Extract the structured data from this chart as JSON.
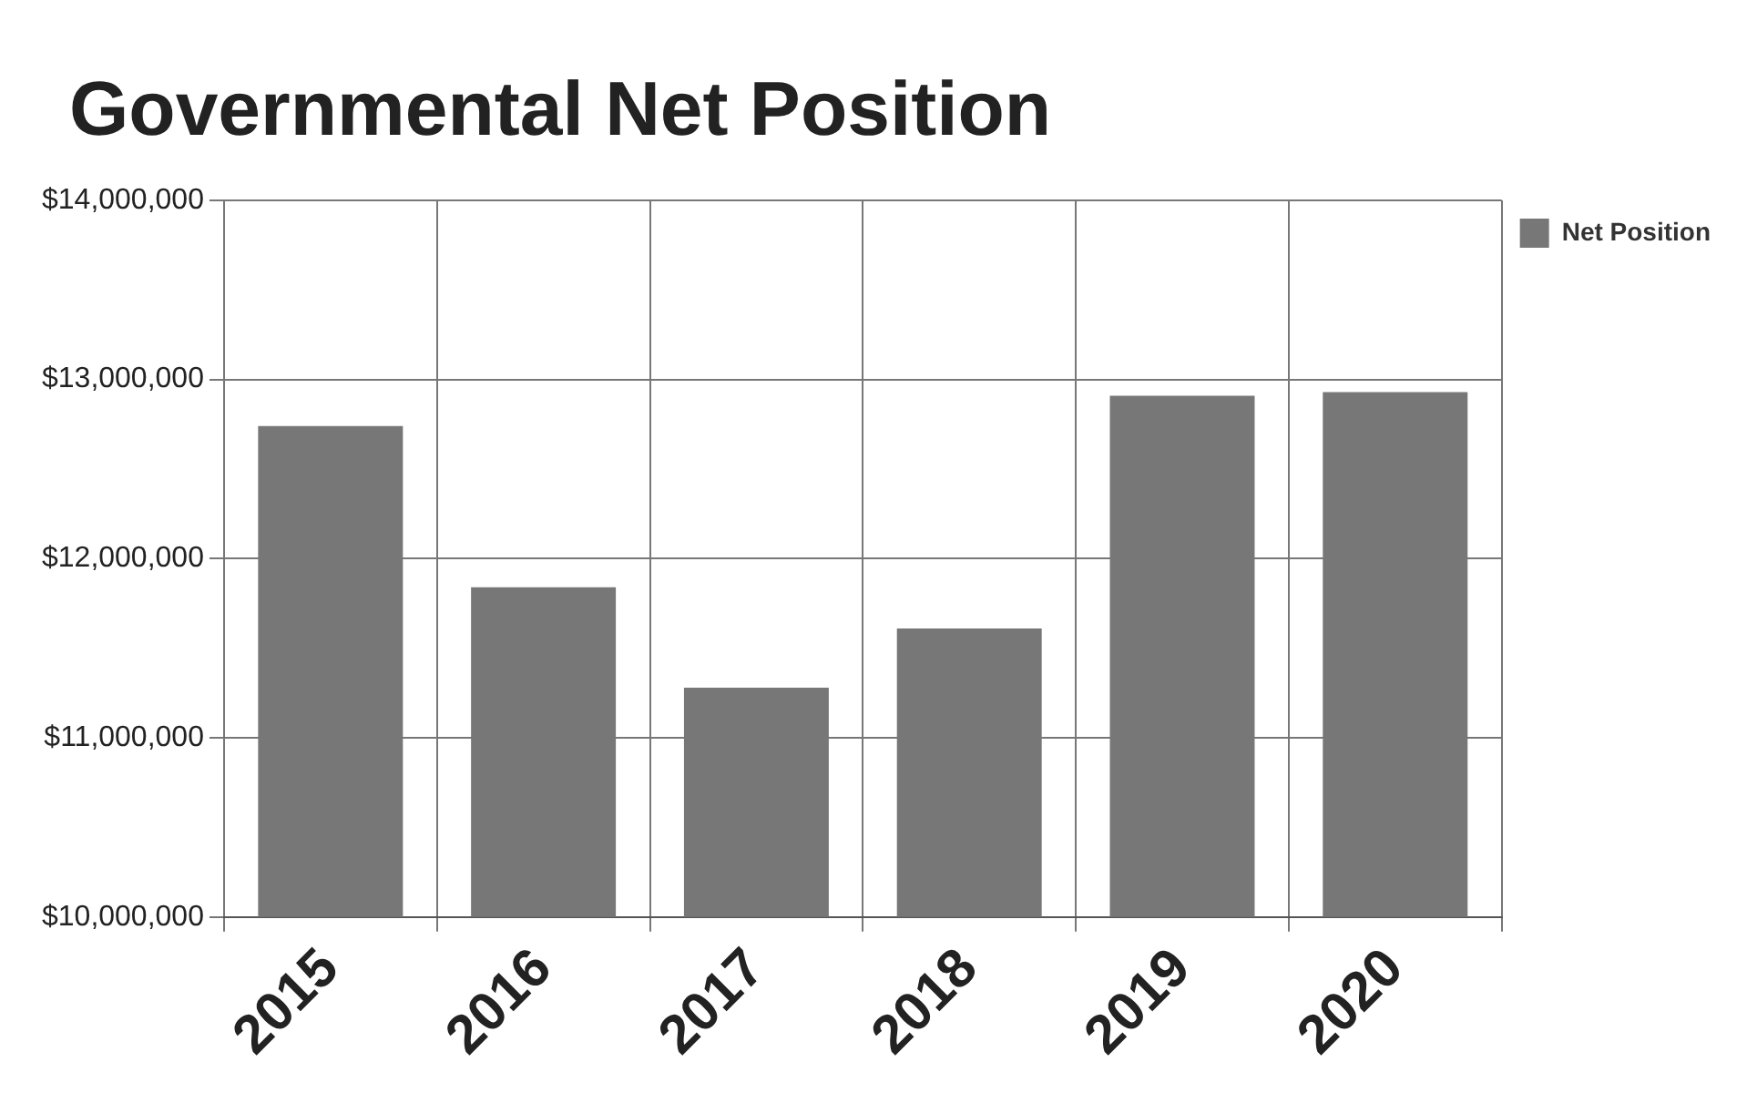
{
  "chart_data": {
    "type": "bar",
    "title": "Governmental Net Position",
    "categories": [
      "2015",
      "2016",
      "2017",
      "2018",
      "2019",
      "2020"
    ],
    "series": [
      {
        "name": "Net Position",
        "color": "#777777",
        "values": [
          12740000,
          11840000,
          11280000,
          11610000,
          12910000,
          12930000
        ]
      }
    ],
    "ylim": [
      10000000,
      14000000
    ],
    "yticks": [
      {
        "value": 10000000,
        "label": "$10,000,000"
      },
      {
        "value": 11000000,
        "label": "$11,000,000"
      },
      {
        "value": 12000000,
        "label": "$12,000,000"
      },
      {
        "value": 13000000,
        "label": "$13,000,000"
      },
      {
        "value": 14000000,
        "label": "$14,000,000"
      }
    ],
    "grid": true,
    "legend": "top right"
  }
}
